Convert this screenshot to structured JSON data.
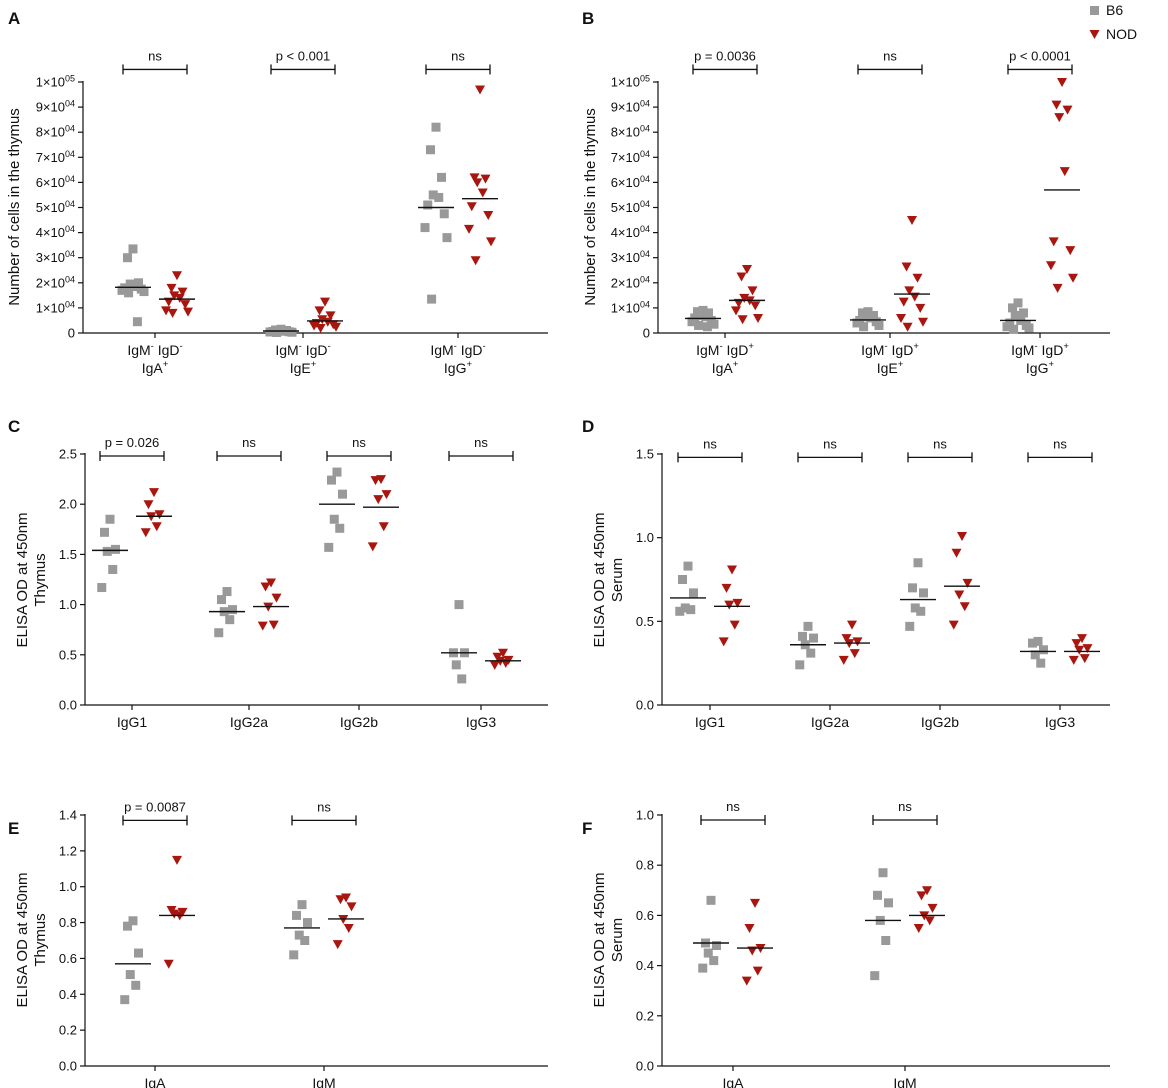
{
  "legend": {
    "entries": [
      {
        "label": "B6",
        "marker": "square",
        "color": "#999999"
      },
      {
        "label": "NOD",
        "marker": "triangle-down",
        "color": "#A8160F"
      }
    ],
    "placement": "top-right"
  },
  "chart_data": [
    {
      "panel": "A",
      "type": "scatter",
      "ylabel": "Number of cells in the thymus",
      "ylim": [
        0,
        100000
      ],
      "yticks": [
        0,
        10000,
        20000,
        30000,
        40000,
        50000,
        60000,
        70000,
        80000,
        90000,
        100000
      ],
      "ytick_labels": [
        {
          "m": "0",
          "e": ""
        },
        {
          "m": "1×10",
          "e": "04"
        },
        {
          "m": "2×10",
          "e": "04"
        },
        {
          "m": "3×10",
          "e": "04"
        },
        {
          "m": "4×10",
          "e": "04"
        },
        {
          "m": "5×10",
          "e": "04"
        },
        {
          "m": "6×10",
          "e": "04"
        },
        {
          "m": "7×10",
          "e": "04"
        },
        {
          "m": "8×10",
          "e": "04"
        },
        {
          "m": "9×10",
          "e": "04"
        },
        {
          "m": "1×10",
          "e": "05"
        }
      ],
      "categories": [
        {
          "l1": [
            {
              "t": "IgM",
              "s": "-"
            },
            {
              "t": " IgD",
              "s": "-"
            }
          ],
          "l2": [
            {
              "t": "IgA",
              "s": "+"
            }
          ]
        },
        {
          "l1": [
            {
              "t": "IgM",
              "s": "-"
            },
            {
              "t": " IgD",
              "s": "-"
            }
          ],
          "l2": [
            {
              "t": "IgE",
              "s": "+"
            }
          ]
        },
        {
          "l1": [
            {
              "t": "IgM",
              "s": "-"
            },
            {
              "t": " IgD",
              "s": "-"
            }
          ],
          "l2": [
            {
              "t": "IgG",
              "s": "+"
            }
          ]
        }
      ],
      "series": [
        {
          "name": "B6",
          "values": [
            [
              33500,
              30000,
              20000,
              19500,
              18500,
              18000,
              17500,
              17000,
              16500,
              16000,
              4500
            ],
            [
              1500,
              1200,
              1000,
              800,
              700,
              600,
              500,
              400,
              300,
              200
            ],
            [
              82000,
              73000,
              62000,
              55000,
              54000,
              51000,
              47500,
              42000,
              38000,
              13500
            ]
          ],
          "means": [
            18200,
            800,
            50000
          ]
        },
        {
          "name": "NOD",
          "values": [
            [
              23000,
              18000,
              16500,
              15000,
              14000,
              12500,
              11500,
              9000,
              8500,
              8000
            ],
            [
              12500,
              9000,
              7000,
              5500,
              4500,
              4000,
              3500,
              3000,
              2500,
              2000
            ],
            [
              97000,
              62000,
              61500,
              60000,
              56000,
              50500,
              47000,
              41500,
              36500,
              29000
            ]
          ],
          "means": [
            13500,
            4800,
            53500
          ]
        }
      ],
      "brackets": [
        {
          "label": "ns",
          "y": 105000
        },
        {
          "label": "p < 0.001",
          "y": 105000
        },
        {
          "label": "ns",
          "y": 105000
        }
      ]
    },
    {
      "panel": "B",
      "type": "scatter",
      "ylabel": "Number of cells in the thymus",
      "ylim": [
        0,
        100000
      ],
      "yticks": [
        0,
        10000,
        20000,
        30000,
        40000,
        50000,
        60000,
        70000,
        80000,
        90000,
        100000
      ],
      "ytick_labels": [
        {
          "m": "0",
          "e": ""
        },
        {
          "m": "1×10",
          "e": "04"
        },
        {
          "m": "2×10",
          "e": "04"
        },
        {
          "m": "3×10",
          "e": "04"
        },
        {
          "m": "4×10",
          "e": "04"
        },
        {
          "m": "5×10",
          "e": "04"
        },
        {
          "m": "6×10",
          "e": "04"
        },
        {
          "m": "7×10",
          "e": "04"
        },
        {
          "m": "8×10",
          "e": "04"
        },
        {
          "m": "9×10",
          "e": "04"
        },
        {
          "m": "1×10",
          "e": "05"
        }
      ],
      "categories": [
        {
          "l1": [
            {
              "t": "IgM",
              "s": "-"
            },
            {
              "t": " IgD",
              "s": "+"
            }
          ],
          "l2": [
            {
              "t": "IgA",
              "s": "+"
            }
          ]
        },
        {
          "l1": [
            {
              "t": "IgM",
              "s": "-"
            },
            {
              "t": " IgD",
              "s": "+"
            }
          ],
          "l2": [
            {
              "t": "IgE",
              "s": "+"
            }
          ]
        },
        {
          "l1": [
            {
              "t": "IgM",
              "s": "-"
            },
            {
              "t": " IgD",
              "s": "+"
            }
          ],
          "l2": [
            {
              "t": "IgG",
              "s": "+"
            }
          ]
        }
      ],
      "series": [
        {
          "name": "B6",
          "values": [
            [
              9000,
              8500,
              8000,
              7000,
              6500,
              6000,
              5000,
              4500,
              3500,
              3000,
              2500
            ],
            [
              8500,
              8000,
              7000,
              6500,
              6000,
              5000,
              4500,
              4000,
              3000,
              2500
            ],
            [
              12000,
              10000,
              8000,
              7000,
              5000,
              4000,
              3000,
              2500,
              2000,
              1500
            ]
          ],
          "means": [
            5800,
            5200,
            5000
          ]
        },
        {
          "name": "NOD",
          "values": [
            [
              25500,
              22500,
              17000,
              14000,
              13000,
              12000,
              11000,
              9000,
              6000,
              5500
            ],
            [
              45000,
              26500,
              22000,
              17000,
              14500,
              12500,
              10000,
              6000,
              4500,
              2500
            ],
            [
              100000,
              91000,
              89000,
              86000,
              64500,
              36500,
              33000,
              27000,
              22000,
              18000
            ]
          ],
          "means": [
            13000,
            15500,
            57000
          ]
        }
      ],
      "brackets": [
        {
          "label": "p = 0.0036",
          "y": 105000
        },
        {
          "label": "ns",
          "y": 105000
        },
        {
          "label": "p < 0.0001",
          "y": 105000
        }
      ]
    },
    {
      "panel": "C",
      "type": "scatter",
      "ylabel": "ELISA OD at 450nm",
      "ylabel2": "Thymus",
      "ylim": [
        0,
        2.5
      ],
      "yticks": [
        0,
        0.5,
        1.0,
        1.5,
        2.0,
        2.5
      ],
      "ytick_labels": [
        {
          "m": "0.0",
          "e": ""
        },
        {
          "m": "0.5",
          "e": ""
        },
        {
          "m": "1.0",
          "e": ""
        },
        {
          "m": "1.5",
          "e": ""
        },
        {
          "m": "2.0",
          "e": ""
        },
        {
          "m": "2.5",
          "e": ""
        }
      ],
      "categories": [
        {
          "l1": [
            {
              "t": "IgG1",
              "s": ""
            }
          ],
          "l2": []
        },
        {
          "l1": [
            {
              "t": "IgG2a",
              "s": ""
            }
          ],
          "l2": []
        },
        {
          "l1": [
            {
              "t": "IgG2b",
              "s": ""
            }
          ],
          "l2": []
        },
        {
          "l1": [
            {
              "t": "IgG3",
              "s": ""
            }
          ],
          "l2": []
        }
      ],
      "series": [
        {
          "name": "B6",
          "values": [
            [
              1.85,
              1.72,
              1.55,
              1.53,
              1.35,
              1.17
            ],
            [
              1.13,
              1.05,
              0.95,
              0.93,
              0.85,
              0.72
            ],
            [
              2.32,
              2.24,
              2.1,
              1.85,
              1.76,
              1.57
            ],
            [
              1.0,
              0.52,
              0.52,
              0.4,
              0.26
            ]
          ],
          "means": [
            1.54,
            0.93,
            2.0,
            0.52
          ]
        },
        {
          "name": "NOD",
          "values": [
            [
              2.12,
              2.0,
              1.9,
              1.88,
              1.78,
              1.72
            ],
            [
              1.22,
              1.18,
              1.07,
              0.98,
              0.8,
              0.79
            ],
            [
              2.25,
              2.24,
              2.1,
              2.05,
              1.78,
              1.58
            ],
            [
              0.52,
              0.48,
              0.45,
              0.44,
              0.42,
              0.4
            ]
          ],
          "means": [
            1.88,
            0.98,
            1.97,
            0.44
          ]
        }
      ],
      "brackets": [
        {
          "label": "p = 0.026",
          "y": 2.48
        },
        {
          "label": "ns",
          "y": 2.48
        },
        {
          "label": "ns",
          "y": 2.48
        },
        {
          "label": "ns",
          "y": 2.48
        }
      ]
    },
    {
      "panel": "D",
      "type": "scatter",
      "ylabel": "ELISA OD at 450nm",
      "ylabel2": "Serum",
      "ylim": [
        0,
        1.5
      ],
      "yticks": [
        0,
        0.5,
        1.0,
        1.5
      ],
      "ytick_labels": [
        {
          "m": "0.0",
          "e": ""
        },
        {
          "m": "0.5",
          "e": ""
        },
        {
          "m": "1.0",
          "e": ""
        },
        {
          "m": "1.5",
          "e": ""
        }
      ],
      "categories": [
        {
          "l1": [
            {
              "t": "IgG1",
              "s": ""
            }
          ],
          "l2": []
        },
        {
          "l1": [
            {
              "t": "IgG2a",
              "s": ""
            }
          ],
          "l2": []
        },
        {
          "l1": [
            {
              "t": "IgG2b",
              "s": ""
            }
          ],
          "l2": []
        },
        {
          "l1": [
            {
              "t": "IgG3",
              "s": ""
            }
          ],
          "l2": []
        }
      ],
      "series": [
        {
          "name": "B6",
          "values": [
            [
              0.83,
              0.75,
              0.67,
              0.58,
              0.57,
              0.56
            ],
            [
              0.47,
              0.41,
              0.4,
              0.36,
              0.31,
              0.24
            ],
            [
              0.85,
              0.7,
              0.67,
              0.58,
              0.56,
              0.47
            ],
            [
              0.38,
              0.37,
              0.33,
              0.3,
              0.25
            ]
          ],
          "means": [
            0.64,
            0.36,
            0.63,
            0.32
          ]
        },
        {
          "name": "NOD",
          "values": [
            [
              0.81,
              0.7,
              0.61,
              0.6,
              0.48,
              0.38
            ],
            [
              0.48,
              0.4,
              0.38,
              0.37,
              0.31,
              0.27
            ],
            [
              1.01,
              0.91,
              0.73,
              0.66,
              0.59,
              0.48
            ],
            [
              0.4,
              0.37,
              0.34,
              0.33,
              0.28,
              0.27
            ]
          ],
          "means": [
            0.59,
            0.37,
            0.71,
            0.32
          ]
        }
      ],
      "brackets": [
        {
          "label": "ns",
          "y": 1.48
        },
        {
          "label": "ns",
          "y": 1.48
        },
        {
          "label": "ns",
          "y": 1.48
        },
        {
          "label": "ns",
          "y": 1.48
        }
      ]
    },
    {
      "panel": "E",
      "type": "scatter",
      "ylabel": "ELISA OD at 450nm",
      "ylabel2": "Thymus",
      "ylim": [
        0,
        1.4
      ],
      "yticks": [
        0,
        0.2,
        0.4,
        0.6,
        0.8,
        1.0,
        1.2,
        1.4
      ],
      "ytick_labels": [
        {
          "m": "0.0",
          "e": ""
        },
        {
          "m": "0.2",
          "e": ""
        },
        {
          "m": "0.4",
          "e": ""
        },
        {
          "m": "0.6",
          "e": ""
        },
        {
          "m": "0.8",
          "e": ""
        },
        {
          "m": "1.0",
          "e": ""
        },
        {
          "m": "1.2",
          "e": ""
        },
        {
          "m": "1.4",
          "e": ""
        }
      ],
      "categories": [
        {
          "l1": [
            {
              "t": "IgA",
              "s": ""
            }
          ],
          "l2": []
        },
        {
          "l1": [
            {
              "t": "IgM",
              "s": ""
            }
          ],
          "l2": []
        }
      ],
      "series": [
        {
          "name": "B6",
          "values": [
            [
              0.81,
              0.78,
              0.63,
              0.51,
              0.45,
              0.37
            ],
            [
              0.9,
              0.84,
              0.8,
              0.73,
              0.7,
              0.62
            ]
          ],
          "means": [
            0.57,
            0.77
          ]
        },
        {
          "name": "NOD",
          "values": [
            [
              1.15,
              0.87,
              0.86,
              0.85,
              0.84,
              0.57
            ],
            [
              0.94,
              0.93,
              0.89,
              0.82,
              0.77,
              0.68
            ]
          ],
          "means": [
            0.84,
            0.82
          ]
        }
      ],
      "brackets": [
        {
          "label": "p = 0.0087",
          "y": 1.37
        },
        {
          "label": "ns",
          "y": 1.37
        }
      ]
    },
    {
      "panel": "F",
      "type": "scatter",
      "ylabel": "ELISA OD at 450nm",
      "ylabel2": "Serum",
      "ylim": [
        0,
        1.0
      ],
      "yticks": [
        0,
        0.2,
        0.4,
        0.6,
        0.8,
        1.0
      ],
      "ytick_labels": [
        {
          "m": "0.0",
          "e": ""
        },
        {
          "m": "0.2",
          "e": ""
        },
        {
          "m": "0.4",
          "e": ""
        },
        {
          "m": "0.6",
          "e": ""
        },
        {
          "m": "0.8",
          "e": ""
        },
        {
          "m": "1.0",
          "e": ""
        }
      ],
      "categories": [
        {
          "l1": [
            {
              "t": "IgA",
              "s": ""
            }
          ],
          "l2": []
        },
        {
          "l1": [
            {
              "t": "IgM",
              "s": ""
            }
          ],
          "l2": []
        }
      ],
      "series": [
        {
          "name": "B6",
          "values": [
            [
              0.66,
              0.49,
              0.48,
              0.45,
              0.42,
              0.39
            ],
            [
              0.77,
              0.68,
              0.65,
              0.58,
              0.5,
              0.36
            ]
          ],
          "means": [
            0.49,
            0.58
          ]
        },
        {
          "name": "NOD",
          "values": [
            [
              0.65,
              0.55,
              0.47,
              0.46,
              0.38,
              0.34
            ],
            [
              0.7,
              0.68,
              0.63,
              0.6,
              0.58,
              0.55
            ]
          ],
          "means": [
            0.47,
            0.6
          ]
        }
      ],
      "brackets": [
        {
          "label": "ns",
          "y": 0.98
        },
        {
          "label": "ns",
          "y": 0.98
        }
      ]
    }
  ]
}
